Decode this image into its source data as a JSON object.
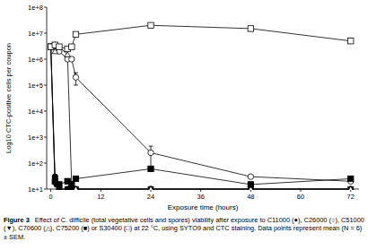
{
  "chart_data": {
    "type": "line",
    "title": "Figure 3",
    "caption": "Effect of C. difficile (total vegetative cells and spores) viability after exposure to C11000 (●), C26000 (○), C51000 (▼), C70600 (△), C75200 (■) or S30400 (□) at 22 °C, using SYTO9 and CTC staining. Data points represent mean (N = 6) ± SEM.",
    "x_label": "Exposure time (hours)",
    "y_label": "Log10 CTC-positive cells per coupon",
    "log": "y",
    "x": [
      0,
      1,
      2,
      4,
      5,
      6,
      24,
      48,
      72
    ],
    "xlim": [
      -1,
      74
    ],
    "xticks": [
      0,
      12,
      24,
      36,
      48,
      60,
      72
    ],
    "ylim": [
      10,
      100000000
    ],
    "yticks": [
      {
        "value": 10,
        "label": "1e+1"
      },
      {
        "value": 100,
        "label": "1e+2"
      },
      {
        "value": 1000,
        "label": "1e+3"
      },
      {
        "value": 10000,
        "label": "1e+4"
      },
      {
        "value": 100000,
        "label": "1e+5"
      },
      {
        "value": 1000000,
        "label": "1e+6"
      },
      {
        "value": 10000000,
        "label": "1e+7"
      },
      {
        "value": 100000000,
        "label": "1e+8"
      }
    ],
    "series": [
      {
        "name": "C11000",
        "color": "#000000",
        "marker": "circle",
        "line_style": "solid",
        "values": [
          3000000,
          30,
          10,
          10,
          10,
          10,
          10,
          10,
          10
        ]
      },
      {
        "name": "C26000",
        "color": "#000000",
        "marker": "circle-open",
        "line_style": "solid",
        "values": [
          3000000,
          3500000,
          2000000,
          1000000,
          1000000,
          200000,
          250,
          30,
          20
        ],
        "errors": [
          null,
          null,
          null,
          null,
          null,
          100000,
          200,
          null,
          null
        ]
      },
      {
        "name": "C51000",
        "color": "#000000",
        "marker": "triangle-down",
        "line_style": "solid",
        "values": [
          3000000,
          15,
          10,
          10,
          10,
          10,
          10,
          10,
          10
        ]
      },
      {
        "name": "C70600",
        "color": "#000000",
        "marker": "triangle-up-open",
        "line_style": "solid",
        "values": [
          3000000,
          2000000,
          3000000,
          1500000,
          15,
          10,
          10,
          10,
          10
        ]
      },
      {
        "name": "C75200",
        "color": "#000000",
        "marker": "square",
        "line_style": "solid",
        "values": [
          3000000,
          20,
          15,
          20,
          15,
          25,
          60,
          15,
          25
        ]
      },
      {
        "name": "S30400",
        "color": "#000000",
        "marker": "square-open",
        "line_style": "solid",
        "values": [
          3000000,
          3500000,
          3000000,
          2500000,
          3000000,
          9000000,
          20000000,
          15000000,
          5000000
        ]
      }
    ]
  }
}
